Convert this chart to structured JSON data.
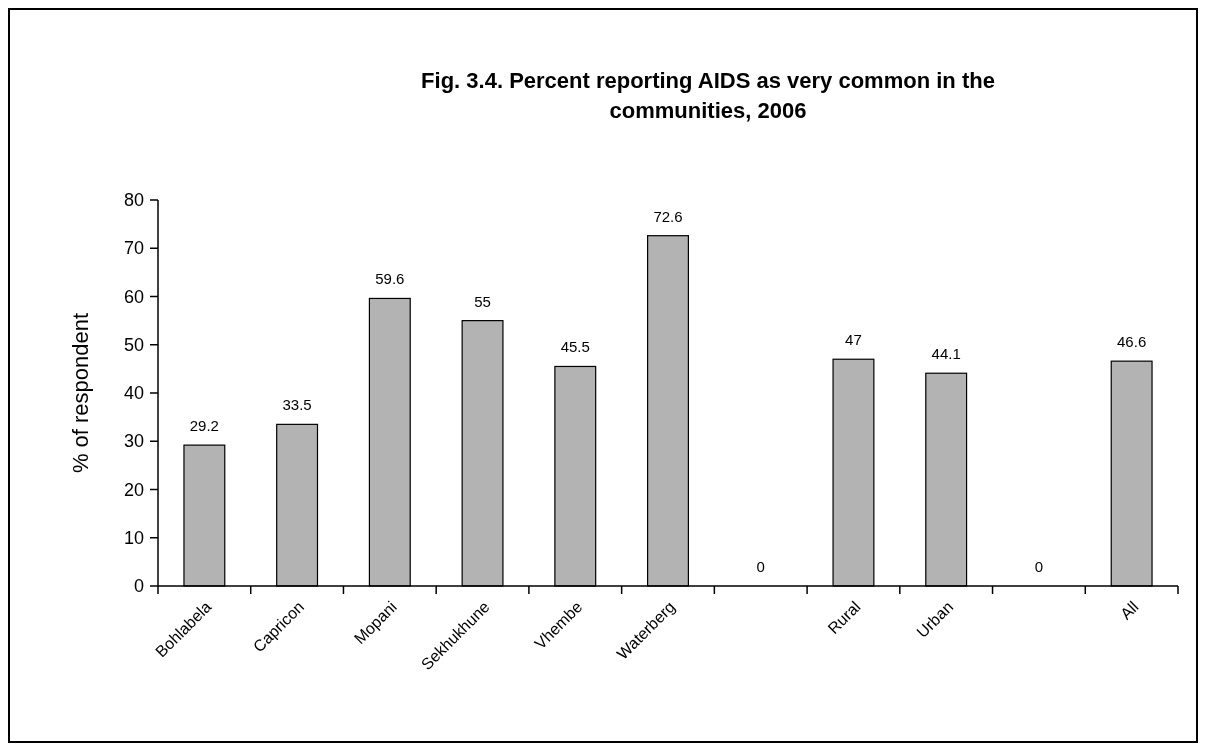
{
  "chart_data": {
    "type": "bar",
    "title": "Fig. 3.4. Percent reporting AIDS as very common in the communities, 2006",
    "ylabel": "% of respondent",
    "categories": [
      "Bohlabela",
      "Capricon",
      "Mopani",
      "Sekhukhune",
      "Vhembe",
      "Waterberg",
      null,
      "Rural",
      "Urban",
      null,
      "All"
    ],
    "values": [
      29.2,
      33.5,
      59.6,
      55,
      45.5,
      72.6,
      0,
      47,
      44.1,
      0,
      46.6
    ],
    "color": "#b3b3b3",
    "ylim": [
      0,
      80
    ],
    "yticks": [
      0,
      10,
      20,
      30,
      40,
      50,
      60,
      70,
      80
    ],
    "data_labels": true,
    "grid": false
  }
}
